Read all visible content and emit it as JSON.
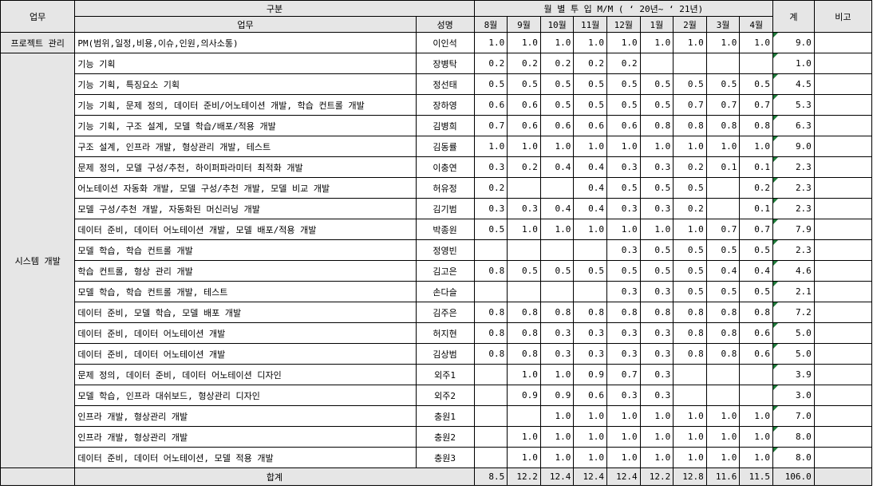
{
  "headers": {
    "work": "업무",
    "division": "구분",
    "monthly_mm": "월 별 투 입 M/M ( ‘ 20년~ ‘ 21년)",
    "total": "계",
    "note": "비고",
    "task": "업무",
    "name": "성명",
    "months": [
      "8월",
      "9월",
      "10월",
      "11월",
      "12월",
      "1월",
      "2월",
      "3월",
      "4월"
    ]
  },
  "groups": {
    "pm": "프로젝트 관리",
    "dev": "시스템 개발"
  },
  "rows": [
    {
      "task": "PM(범위,일정,비용,이슈,인원,의사소통)",
      "name": "이인석",
      "m": [
        "1.0",
        "1.0",
        "1.0",
        "1.0",
        "1.0",
        "1.0",
        "1.0",
        "1.0",
        "1.0"
      ],
      "total": "9.0"
    },
    {
      "task": "기능 기획",
      "name": "장병탁",
      "m": [
        "0.2",
        "0.2",
        "0.2",
        "0.2",
        "0.2",
        "",
        "",
        "",
        ""
      ],
      "total": "1.0"
    },
    {
      "task": "기능 기획, 특징요소 기획",
      "name": "정선태",
      "m": [
        "0.5",
        "0.5",
        "0.5",
        "0.5",
        "0.5",
        "0.5",
        "0.5",
        "0.5",
        "0.5"
      ],
      "total": "4.5"
    },
    {
      "task": "기능 기획, 문제 정의, 데이터 준비/어노테이션 개발, 학습 컨트롤 개발",
      "name": "장하영",
      "m": [
        "0.6",
        "0.6",
        "0.5",
        "0.5",
        "0.5",
        "0.5",
        "0.7",
        "0.7",
        "0.7"
      ],
      "total": "5.3"
    },
    {
      "task": "기능 기획, 구조 설계, 모델 학습/배포/적용 개발",
      "name": "김병희",
      "m": [
        "0.7",
        "0.6",
        "0.6",
        "0.6",
        "0.6",
        "0.8",
        "0.8",
        "0.8",
        "0.8"
      ],
      "total": "6.3"
    },
    {
      "task": "구조 설계, 인프라 개발, 형상관리 개발, 테스트",
      "name": "김동률",
      "m": [
        "1.0",
        "1.0",
        "1.0",
        "1.0",
        "1.0",
        "1.0",
        "1.0",
        "1.0",
        "1.0"
      ],
      "total": "9.0"
    },
    {
      "task": "문제 정의, 모델 구성/추천, 하이퍼파라미터 최적화 개발",
      "name": "이충연",
      "m": [
        "0.3",
        "0.2",
        "0.4",
        "0.4",
        "0.3",
        "0.3",
        "0.2",
        "0.1",
        "0.1"
      ],
      "total": "2.3"
    },
    {
      "task": "어노테이션 자동화 개발, 모델 구성/추천 개발, 모델 비교 개발",
      "name": "허유정",
      "m": [
        "0.2",
        "",
        "",
        "0.4",
        "0.5",
        "0.5",
        "0.5",
        "",
        "0.2"
      ],
      "total": "2.3"
    },
    {
      "task": "모델 구성/추천 개발, 자동화된 머신러닝 개발",
      "name": "김기범",
      "m": [
        "0.3",
        "0.3",
        "0.4",
        "0.4",
        "0.3",
        "0.3",
        "0.2",
        "",
        "0.1"
      ],
      "total": "2.3"
    },
    {
      "task": "데이터 준비, 데이터 어노테이션 개발, 모델 배포/적용 개발",
      "name": "박종원",
      "m": [
        "0.5",
        "1.0",
        "1.0",
        "1.0",
        "1.0",
        "1.0",
        "1.0",
        "0.7",
        "0.7"
      ],
      "total": "7.9"
    },
    {
      "task": "모델 학습, 학습 컨트롤 개발",
      "name": "정영빈",
      "m": [
        "",
        "",
        "",
        "",
        "0.3",
        "0.5",
        "0.5",
        "0.5",
        "0.5"
      ],
      "total": "2.3"
    },
    {
      "task": "학습 컨트롤, 형상 관리 개발",
      "name": "김고은",
      "m": [
        "0.8",
        "0.5",
        "0.5",
        "0.5",
        "0.5",
        "0.5",
        "0.5",
        "0.4",
        "0.4"
      ],
      "total": "4.6"
    },
    {
      "task": "모델 학습, 학습 컨트롤 개발, 테스트",
      "name": "손다슬",
      "m": [
        "",
        "",
        "",
        "",
        "0.3",
        "0.3",
        "0.5",
        "0.5",
        "0.5"
      ],
      "total": "2.1"
    },
    {
      "task": "데이터 준비, 모델 학습, 모델 배포 개발",
      "name": "김주은",
      "m": [
        "0.8",
        "0.8",
        "0.8",
        "0.8",
        "0.8",
        "0.8",
        "0.8",
        "0.8",
        "0.8"
      ],
      "total": "7.2"
    },
    {
      "task": "데이터 준비, 데이터 어노테이션 개발",
      "name": "허지현",
      "m": [
        "0.8",
        "0.8",
        "0.3",
        "0.3",
        "0.3",
        "0.3",
        "0.8",
        "0.8",
        "0.6"
      ],
      "total": "5.0"
    },
    {
      "task": "데이터 준비, 데이터 어노테이션 개발",
      "name": "김상범",
      "m": [
        "0.8",
        "0.8",
        "0.3",
        "0.3",
        "0.3",
        "0.3",
        "0.8",
        "0.8",
        "0.6"
      ],
      "total": "5.0"
    },
    {
      "task": "문제 정의, 데이터 준비, 데이터 어노테이션 디자인",
      "name": "외주1",
      "m": [
        "",
        "1.0",
        "1.0",
        "0.9",
        "0.7",
        "0.3",
        "",
        "",
        ""
      ],
      "total": "3.9"
    },
    {
      "task": "모델 학습, 인프라 대쉬보드, 형상관리 디자인",
      "name": "외주2",
      "m": [
        "",
        "0.9",
        "0.9",
        "0.6",
        "0.3",
        "0.3",
        "",
        "",
        ""
      ],
      "total": "3.0"
    },
    {
      "task": "인프라 개발, 형상관리 개발",
      "name": "충원1",
      "m": [
        "",
        "",
        "1.0",
        "1.0",
        "1.0",
        "1.0",
        "1.0",
        "1.0",
        "1.0"
      ],
      "total": "7.0"
    },
    {
      "task": "인프라 개발, 형상관리 개발",
      "name": "충원2",
      "m": [
        "",
        "1.0",
        "1.0",
        "1.0",
        "1.0",
        "1.0",
        "1.0",
        "1.0",
        "1.0"
      ],
      "total": "8.0"
    },
    {
      "task": "데이터 준비, 데이터 어노테이션, 모델 적용 개발",
      "name": "충원3",
      "m": [
        "",
        "1.0",
        "1.0",
        "1.0",
        "1.0",
        "1.0",
        "1.0",
        "1.0",
        "1.0"
      ],
      "total": "8.0"
    }
  ],
  "sum": {
    "label": "합계",
    "m": [
      "8.5",
      "12.2",
      "12.4",
      "12.4",
      "12.4",
      "12.2",
      "12.8",
      "11.6",
      "11.5"
    ],
    "total": "106.0"
  },
  "colors": {
    "header_bg": "#e6e6e6",
    "marker": "#1f7a3a"
  }
}
